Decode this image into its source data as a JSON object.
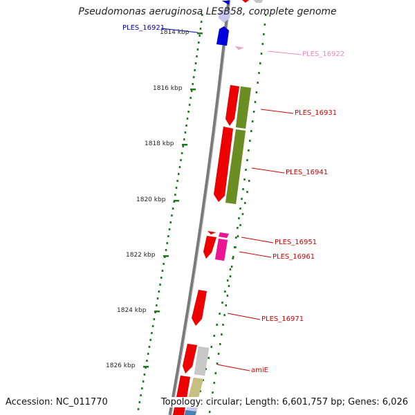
{
  "title": "Pseudomonas aeruginosa LESB58, complete genome",
  "footer": {
    "accession": "Accession: NC_011770",
    "topology": "Topology: circular; Length: 6,601,757 bp; Genes: 6,026"
  },
  "scale": {
    "unit": "kbp",
    "ticks": [
      {
        "label": "1814 kbp",
        "kbp": 1814
      },
      {
        "label": "1816 kbp",
        "kbp": 1816
      },
      {
        "label": "1818 kbp",
        "kbp": 1818
      },
      {
        "label": "1820 kbp",
        "kbp": 1820
      },
      {
        "label": "1822 kbp",
        "kbp": 1822
      },
      {
        "label": "1824 kbp",
        "kbp": 1824
      },
      {
        "label": "1826 kbp",
        "kbp": 1826
      }
    ]
  },
  "genes": [
    {
      "label": "PLES_16921",
      "color": "#0000cc"
    },
    {
      "label": "PLES_16922",
      "color": "#ee88bb"
    },
    {
      "label": "PLES_16931",
      "color": "#cc0000"
    },
    {
      "label": "PLES_16941",
      "color": "#cc0000"
    },
    {
      "label": "PLES_16951",
      "color": "#cc0000"
    },
    {
      "label": "PLES_16961",
      "color": "#cc0000"
    },
    {
      "label": "PLES_16971",
      "color": "#cc0000"
    },
    {
      "label": "amiE",
      "color": "#cc0000"
    }
  ],
  "colors": {
    "backbone": "#7a7a7a",
    "tick": "#1a7a1a",
    "cds_forward": "#ee0000",
    "cds_green": "#6b8e23",
    "cds_magenta": "#ee1493",
    "cds_grey": "#c8c8c8",
    "cds_olive": "#c8c080",
    "cds_blue": "#0000dd",
    "cds_steel": "#4682b4"
  }
}
